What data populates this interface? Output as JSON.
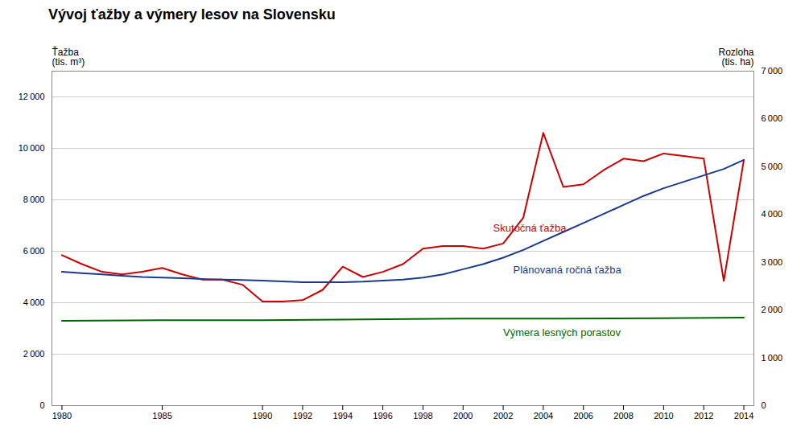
{
  "chart_data": {
    "type": "line",
    "title": "Vývoj ťažby a výmery lesov na Slovensku",
    "ylabel": [
      "Ťažba",
      "(tis. m³)"
    ],
    "y2label": [
      "Rozloha",
      "(tis. ha)"
    ],
    "xlim": [
      1979.5,
      2014.5
    ],
    "xticks": [
      1980,
      1985,
      1990,
      1992,
      1994,
      1996,
      1998,
      2000,
      2002,
      2004,
      2006,
      2008,
      2010,
      2012,
      2014
    ],
    "ylim": [
      0,
      13000
    ],
    "yticks": [
      0,
      {
        "value": 2000,
        "label": "2 000"
      },
      {
        "value": 4000,
        "label": "4 000"
      },
      {
        "value": 6000,
        "label": "6 000"
      },
      {
        "value": 8000,
        "label": "8 000"
      },
      {
        "value": 10000,
        "label": "10 000"
      },
      {
        "value": 12000,
        "label": "12 000"
      }
    ],
    "y2lim": [
      0,
      7000
    ],
    "y2ticks": [
      0,
      {
        "value": 1000,
        "label": "1 000"
      },
      {
        "value": 2000,
        "label": "2 000"
      },
      {
        "value": 3000,
        "label": "3 000"
      },
      {
        "value": 4000,
        "label": "4 000"
      },
      {
        "value": 5000,
        "label": "5 000"
      },
      {
        "value": 6000,
        "label": "6 000"
      },
      {
        "value": 7000,
        "label": "7 000"
      }
    ],
    "grid": true,
    "series": [
      {
        "name": "Skutočná ťažba",
        "color": "#cc0000",
        "x": [
          1980,
          1981,
          1982,
          1983,
          1984,
          1985,
          1986,
          1987,
          1988,
          1989,
          1990,
          1991,
          1992,
          1993,
          1994,
          1995,
          1996,
          1997,
          1998,
          1999,
          2000,
          2001,
          2002,
          2003,
          2004,
          2005,
          2006,
          2007,
          2008,
          2009,
          2010,
          2011,
          2012,
          2013,
          2014
        ],
        "values": [
          5850,
          5500,
          5200,
          5100,
          5200,
          5350,
          5100,
          4900,
          4900,
          4700,
          4050,
          4050,
          4100,
          4500,
          5400,
          5000,
          5200,
          5500,
          6100,
          6200,
          6200,
          6100,
          6300,
          7300,
          10600,
          8500,
          8600,
          9150,
          9600,
          9500,
          9800,
          9700,
          9600,
          4850,
          9550
        ]
      },
      {
        "name": "Plánovaná ročná ťažba",
        "color": "#1a3a8a",
        "x": [
          1980,
          1981,
          1982,
          1983,
          1984,
          1985,
          1986,
          1987,
          1988,
          1989,
          1990,
          1991,
          1992,
          1993,
          1994,
          1995,
          1996,
          1997,
          1998,
          1999,
          2000,
          2001,
          2002,
          2003,
          2004,
          2005,
          2006,
          2007,
          2008,
          2009,
          2010,
          2011,
          2012,
          2013,
          2014
        ],
        "values": [
          5200,
          5150,
          5100,
          5050,
          5000,
          4980,
          4950,
          4920,
          4900,
          4880,
          4860,
          4830,
          4800,
          4800,
          4800,
          4820,
          4860,
          4900,
          4980,
          5100,
          5300,
          5500,
          5750,
          6050,
          6400,
          6750,
          7100,
          7450,
          7800,
          8150,
          8450,
          8700,
          8950,
          9200,
          9550
        ]
      },
      {
        "name": "Výmera lesných porastov",
        "color": "#006600",
        "x": [
          1980,
          1985,
          1990,
          1995,
          2000,
          2005,
          2010,
          2014
        ],
        "values": [
          3300,
          3320,
          3320,
          3350,
          3380,
          3380,
          3400,
          3420
        ]
      }
    ],
    "annotations": [
      {
        "text": "Skutočná ťažba",
        "x": 2001.5,
        "y": 6700,
        "color": "#cc0000"
      },
      {
        "text": "Plánovaná ročná ťažba",
        "x": 2002.5,
        "y": 5500,
        "color": "#1a3a8a"
      },
      {
        "text": "Výmera lesných porastov",
        "x": 2002,
        "y": 3050,
        "color": "#006600"
      }
    ]
  }
}
